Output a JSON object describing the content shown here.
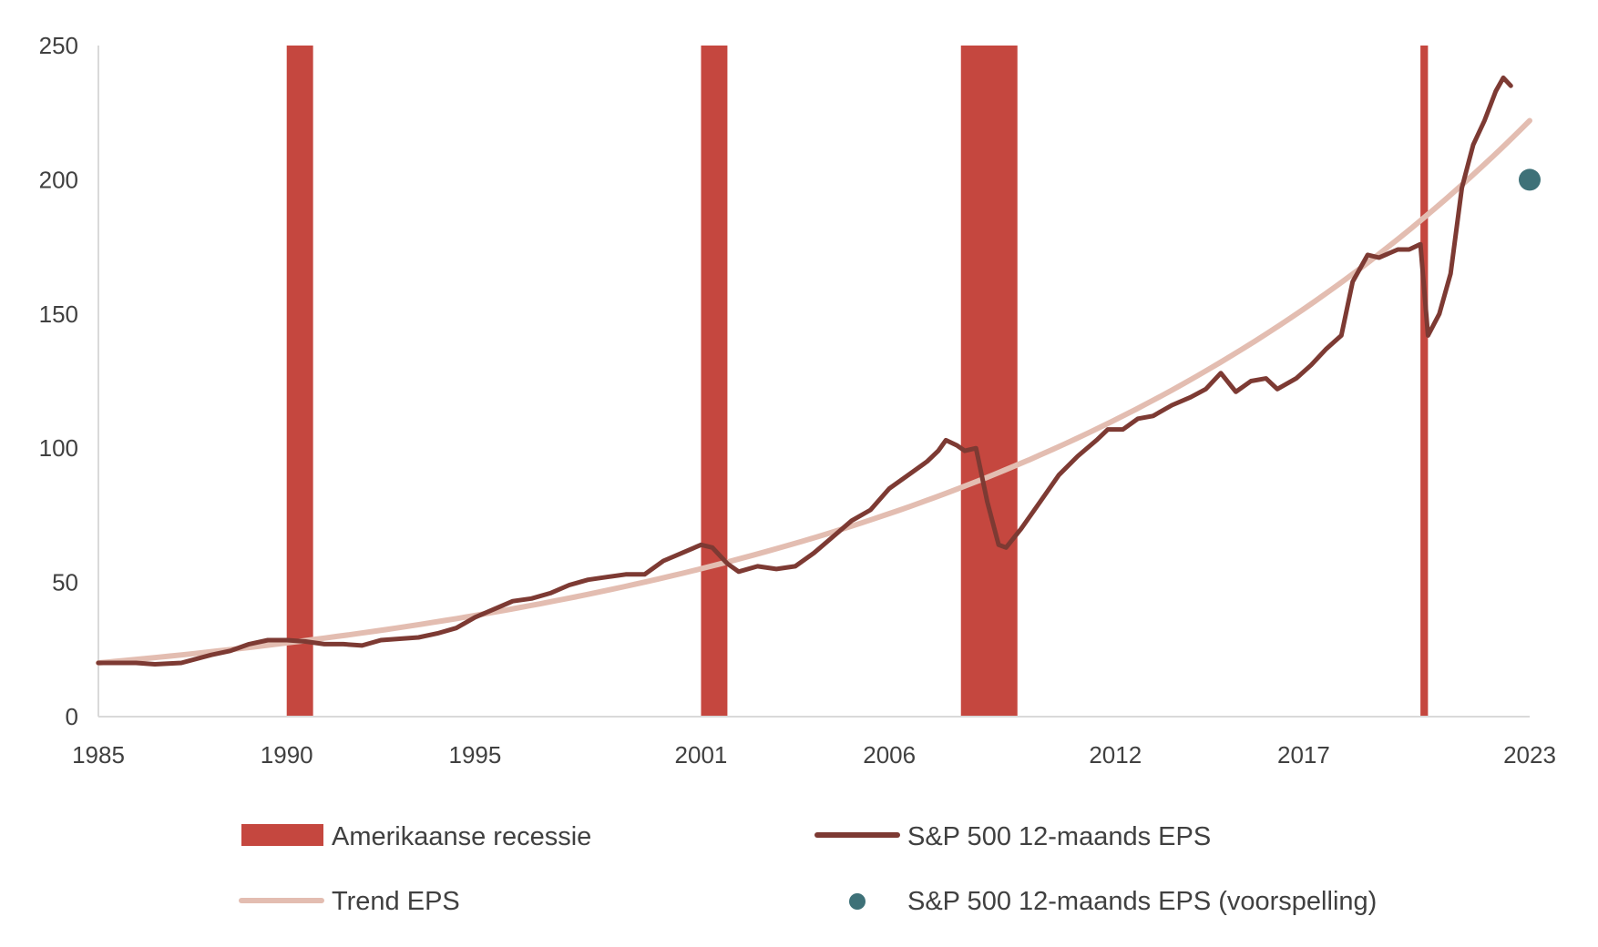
{
  "chart_data": {
    "type": "line",
    "title": "",
    "xlabel": "",
    "ylabel": "",
    "xlim": [
      1985,
      2023
    ],
    "ylim": [
      0,
      250
    ],
    "x_ticks": [
      "1985",
      "1990",
      "1995",
      "2001",
      "2006",
      "2012",
      "2017",
      "2023"
    ],
    "y_ticks": [
      "0",
      "50",
      "100",
      "150",
      "200",
      "250"
    ],
    "grid": false,
    "legend": "bottom",
    "recessions": {
      "name": "Amerikaanse recessie",
      "color": "#C5473F",
      "periods": [
        [
          1990.0,
          1990.7
        ],
        [
          2001.0,
          2001.7
        ],
        [
          2007.9,
          2009.4
        ],
        [
          2020.1,
          2020.3
        ]
      ]
    },
    "series": [
      {
        "name": "S&P 500 12-maands EPS",
        "color": "#7D3A33",
        "points": [
          [
            1985.0,
            20
          ],
          [
            1986.0,
            20
          ],
          [
            1986.5,
            19.5
          ],
          [
            1987.2,
            20
          ],
          [
            1988.0,
            23
          ],
          [
            1988.5,
            24.5
          ],
          [
            1989.0,
            27
          ],
          [
            1989.5,
            28.5
          ],
          [
            1990.0,
            28.5
          ],
          [
            1990.5,
            28
          ],
          [
            1991.0,
            27
          ],
          [
            1991.5,
            27
          ],
          [
            1992.0,
            26.5
          ],
          [
            1992.5,
            28.5
          ],
          [
            1993.0,
            29
          ],
          [
            1993.5,
            29.5
          ],
          [
            1994.0,
            31
          ],
          [
            1994.5,
            33
          ],
          [
            1995.0,
            37
          ],
          [
            1995.5,
            40
          ],
          [
            1996.0,
            43
          ],
          [
            1996.5,
            44
          ],
          [
            1997.0,
            46
          ],
          [
            1997.5,
            49
          ],
          [
            1998.0,
            51
          ],
          [
            1998.5,
            52
          ],
          [
            1999.0,
            53
          ],
          [
            1999.5,
            53
          ],
          [
            2000.0,
            58
          ],
          [
            2000.5,
            61
          ],
          [
            2001.0,
            64
          ],
          [
            2001.3,
            63
          ],
          [
            2001.7,
            57
          ],
          [
            2002.0,
            54
          ],
          [
            2002.5,
            56
          ],
          [
            2003.0,
            55
          ],
          [
            2003.5,
            56
          ],
          [
            2004.0,
            61
          ],
          [
            2004.5,
            67
          ],
          [
            2005.0,
            73
          ],
          [
            2005.5,
            77
          ],
          [
            2006.0,
            85
          ],
          [
            2006.5,
            90
          ],
          [
            2007.0,
            95
          ],
          [
            2007.3,
            99
          ],
          [
            2007.5,
            103
          ],
          [
            2007.8,
            101
          ],
          [
            2008.0,
            99
          ],
          [
            2008.3,
            100
          ],
          [
            2008.6,
            80
          ],
          [
            2008.9,
            64
          ],
          [
            2009.1,
            63
          ],
          [
            2009.5,
            70
          ],
          [
            2010.0,
            80
          ],
          [
            2010.5,
            90
          ],
          [
            2011.0,
            97
          ],
          [
            2011.5,
            103
          ],
          [
            2011.8,
            107
          ],
          [
            2012.2,
            107
          ],
          [
            2012.6,
            111
          ],
          [
            2013.0,
            112
          ],
          [
            2013.5,
            116
          ],
          [
            2014.0,
            119
          ],
          [
            2014.4,
            122
          ],
          [
            2014.8,
            128
          ],
          [
            2015.2,
            121
          ],
          [
            2015.6,
            125
          ],
          [
            2016.0,
            126
          ],
          [
            2016.3,
            122
          ],
          [
            2016.8,
            126
          ],
          [
            2017.2,
            131
          ],
          [
            2017.6,
            137
          ],
          [
            2018.0,
            142
          ],
          [
            2018.3,
            162
          ],
          [
            2018.7,
            172
          ],
          [
            2019.0,
            171
          ],
          [
            2019.5,
            174
          ],
          [
            2019.8,
            174
          ],
          [
            2020.1,
            176
          ],
          [
            2020.3,
            142
          ],
          [
            2020.6,
            150
          ],
          [
            2020.9,
            165
          ],
          [
            2021.2,
            197
          ],
          [
            2021.5,
            213
          ],
          [
            2021.8,
            222
          ],
          [
            2022.1,
            233
          ],
          [
            2022.3,
            238
          ],
          [
            2022.5,
            235
          ]
        ]
      },
      {
        "name": "Trend EPS",
        "color": "#E3BDB1",
        "model": "exponential",
        "start": [
          1985.0,
          20
        ],
        "end": [
          2023.0,
          222
        ]
      },
      {
        "name": "S&P 500 12-maands EPS (voorspelling)",
        "color": "#3E7178",
        "points": [
          [
            2023.0,
            200
          ]
        ]
      }
    ]
  }
}
